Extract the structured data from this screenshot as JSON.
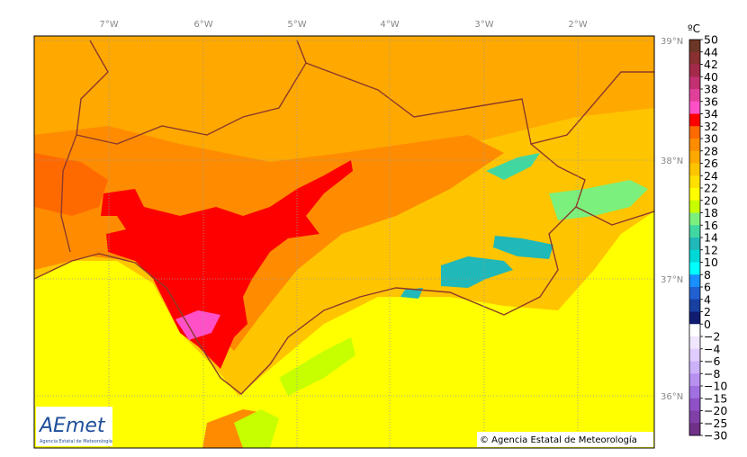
{
  "longitude_labels": [
    "7°W",
    "6°W",
    "5°W",
    "4°W",
    "3°W",
    "2°W"
  ],
  "latitude_labels": [
    "39°N",
    "38°N",
    "37°N",
    "36°N"
  ],
  "colorbar": {
    "unit": "ºC",
    "labels": [
      "50",
      "44",
      "42",
      "40",
      "38",
      "36",
      "34",
      "32",
      "30",
      "28",
      "26",
      "24",
      "22",
      "20",
      "18",
      "16",
      "14",
      "12",
      "10",
      "8",
      "6",
      "4",
      "2",
      "0",
      "−2",
      "−4",
      "−6",
      "−8",
      "−10",
      "−15",
      "−20",
      "−25",
      "−30"
    ],
    "colors": [
      "#6b3626",
      "#8a3030",
      "#a32a4a",
      "#c23072",
      "#e0409a",
      "#ff50c8",
      "#ff0000",
      "#ff6a00",
      "#ff8c00",
      "#ffa800",
      "#ffc400",
      "#ffe000",
      "#ffff00",
      "#c8ff00",
      "#7cf07c",
      "#40d8a0",
      "#20b8b8",
      "#00d8d8",
      "#00ffff",
      "#1890ff",
      "#2060d0",
      "#1840a0",
      "#101c70",
      "#ffffff",
      "#f0e6ff",
      "#e0ccff",
      "#ccb0f8",
      "#b890f0",
      "#a070e0",
      "#9050c8",
      "#8040a8",
      "#703088"
    ]
  },
  "logo": {
    "name": "AEmet",
    "subtitle": "Agencia Estatal de Meteorología"
  },
  "copyright": "© Agencia Estatal de Meteorología"
}
